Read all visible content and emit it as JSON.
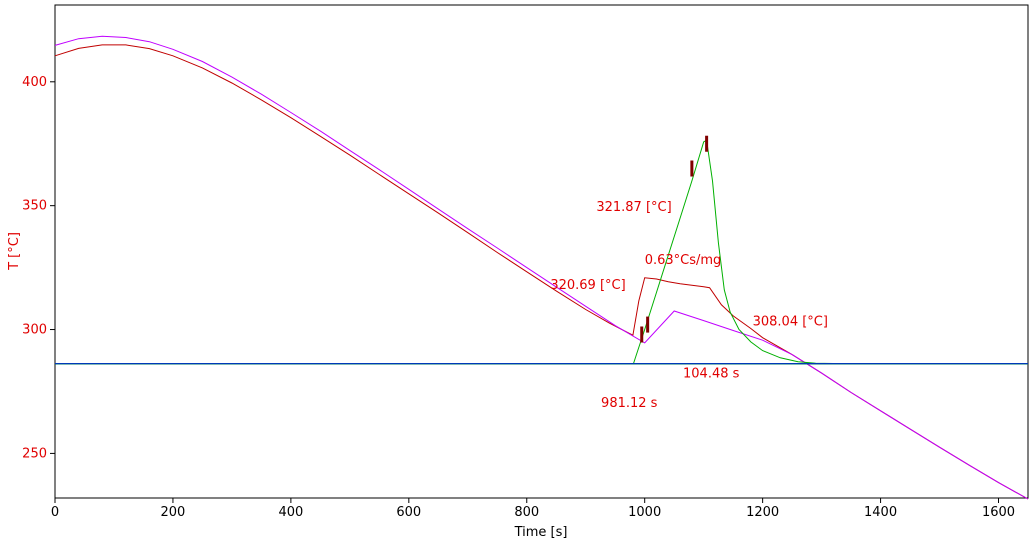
{
  "chart_data": {
    "type": "line",
    "xlabel": "Time [s]",
    "ylabel": "T  [°C]",
    "xlim": [
      0,
      1650
    ],
    "ylim": [
      232,
      431
    ],
    "x_ticks": [
      0,
      200,
      400,
      600,
      800,
      1000,
      1200,
      1400,
      1600
    ],
    "y_ticks": [
      250,
      300,
      350,
      400
    ],
    "grid": false,
    "colors": {
      "axis": "#000000",
      "tick_y": "#e00000",
      "annotation": "#e00000",
      "series_red": "#c00000",
      "series_magenta": "#c000ff",
      "series_green": "#00b000",
      "series_baseline_blue": "#0000ff",
      "series_baseline_teal": "#007070",
      "marker": "#800000"
    },
    "series": [
      {
        "color": "#c00000",
        "points": [
          [
            0,
            410.5
          ],
          [
            40,
            413.5
          ],
          [
            80,
            414.9
          ],
          [
            120,
            414.9
          ],
          [
            160,
            413.4
          ],
          [
            200,
            410.5
          ],
          [
            250,
            405.6
          ],
          [
            300,
            399.5
          ],
          [
            350,
            392.7
          ],
          [
            400,
            385.5
          ],
          [
            450,
            378
          ],
          [
            500,
            370.4
          ],
          [
            550,
            362.6
          ],
          [
            600,
            354.8
          ],
          [
            650,
            347
          ],
          [
            700,
            339.1
          ],
          [
            750,
            331.1
          ],
          [
            800,
            323.3
          ],
          [
            850,
            315.6
          ],
          [
            900,
            308.1
          ],
          [
            940,
            302.6
          ],
          [
            980,
            297.7
          ],
          [
            990,
            311.5
          ],
          [
            1000,
            320.9
          ],
          [
            1020,
            320.4
          ],
          [
            1040,
            319.3
          ],
          [
            1060,
            318.5
          ],
          [
            1080,
            317.9
          ],
          [
            1100,
            317.3
          ],
          [
            1110,
            316.9
          ],
          [
            1130,
            310
          ],
          [
            1150,
            305.5
          ],
          [
            1180,
            300.4
          ],
          [
            1200,
            296.7
          ],
          [
            1250,
            289.9
          ],
          [
            1300,
            282.4
          ],
          [
            1350,
            274.6
          ],
          [
            1400,
            267.2
          ],
          [
            1450,
            259.8
          ],
          [
            1500,
            252.5
          ],
          [
            1550,
            245.3
          ],
          [
            1600,
            238.2
          ],
          [
            1650,
            231.6
          ]
        ]
      },
      {
        "color": "#c000ff",
        "points": [
          [
            0,
            414.7
          ],
          [
            40,
            417.4
          ],
          [
            80,
            418.4
          ],
          [
            120,
            417.9
          ],
          [
            160,
            416.2
          ],
          [
            200,
            413.1
          ],
          [
            250,
            408.2
          ],
          [
            300,
            401.9
          ],
          [
            350,
            395
          ],
          [
            400,
            387.6
          ],
          [
            450,
            380.1
          ],
          [
            500,
            372.3
          ],
          [
            550,
            364.5
          ],
          [
            600,
            356.6
          ],
          [
            650,
            348.6
          ],
          [
            700,
            340.7
          ],
          [
            750,
            332.9
          ],
          [
            800,
            325
          ],
          [
            850,
            317.2
          ],
          [
            900,
            309.4
          ],
          [
            950,
            301.6
          ],
          [
            1000,
            294.6
          ],
          [
            1050,
            307.5
          ],
          [
            1100,
            303.6
          ],
          [
            1150,
            299.6
          ],
          [
            1200,
            295.7
          ],
          [
            1250,
            289.9
          ],
          [
            1300,
            282.4
          ],
          [
            1350,
            274.6
          ],
          [
            1400,
            267.2
          ],
          [
            1450,
            259.8
          ],
          [
            1500,
            252.5
          ],
          [
            1550,
            245.3
          ],
          [
            1600,
            238.2
          ],
          [
            1650,
            231.6
          ]
        ]
      },
      {
        "color": "#00b000",
        "points": [
          [
            0,
            286.3
          ],
          [
            981,
            286.3
          ],
          [
            1000,
            300
          ],
          [
            1020,
            315
          ],
          [
            1040,
            330
          ],
          [
            1060,
            345
          ],
          [
            1080,
            360
          ],
          [
            1100,
            375.8
          ],
          [
            1105,
            376.4
          ],
          [
            1115,
            360
          ],
          [
            1125,
            335
          ],
          [
            1135,
            316
          ],
          [
            1145,
            307
          ],
          [
            1160,
            300
          ],
          [
            1180,
            295
          ],
          [
            1200,
            291.5
          ],
          [
            1230,
            288.6
          ],
          [
            1260,
            287
          ],
          [
            1290,
            286.4
          ],
          [
            1320,
            286.3
          ],
          [
            1650,
            286.3
          ]
        ]
      },
      {
        "color": "#0000ff",
        "points": [
          [
            0,
            286.3
          ],
          [
            1650,
            286.3
          ]
        ]
      },
      {
        "color": "#007070",
        "points": [
          [
            0,
            286.1
          ],
          [
            1650,
            286.1
          ]
        ]
      }
    ],
    "markers": [
      {
        "x": 995,
        "y": 298
      },
      {
        "x": 1005,
        "y": 302
      },
      {
        "x": 1080,
        "y": 365
      },
      {
        "x": 1105,
        "y": 375
      }
    ],
    "annotations": [
      {
        "text": "321.87 [°C]",
        "x": 918,
        "y": 347.9
      },
      {
        "text": "0.63°Cs/mg",
        "x": 1000,
        "y": 326.5
      },
      {
        "text": "320.69 [°C]",
        "x": 840,
        "y": 316.4
      },
      {
        "text": "308.04 [°C]",
        "x": 1183,
        "y": 301.6
      },
      {
        "text": "104.48 s",
        "x": 1065,
        "y": 280.6
      },
      {
        "text": "981.12 s",
        "x": 926,
        "y": 268.7
      }
    ]
  }
}
